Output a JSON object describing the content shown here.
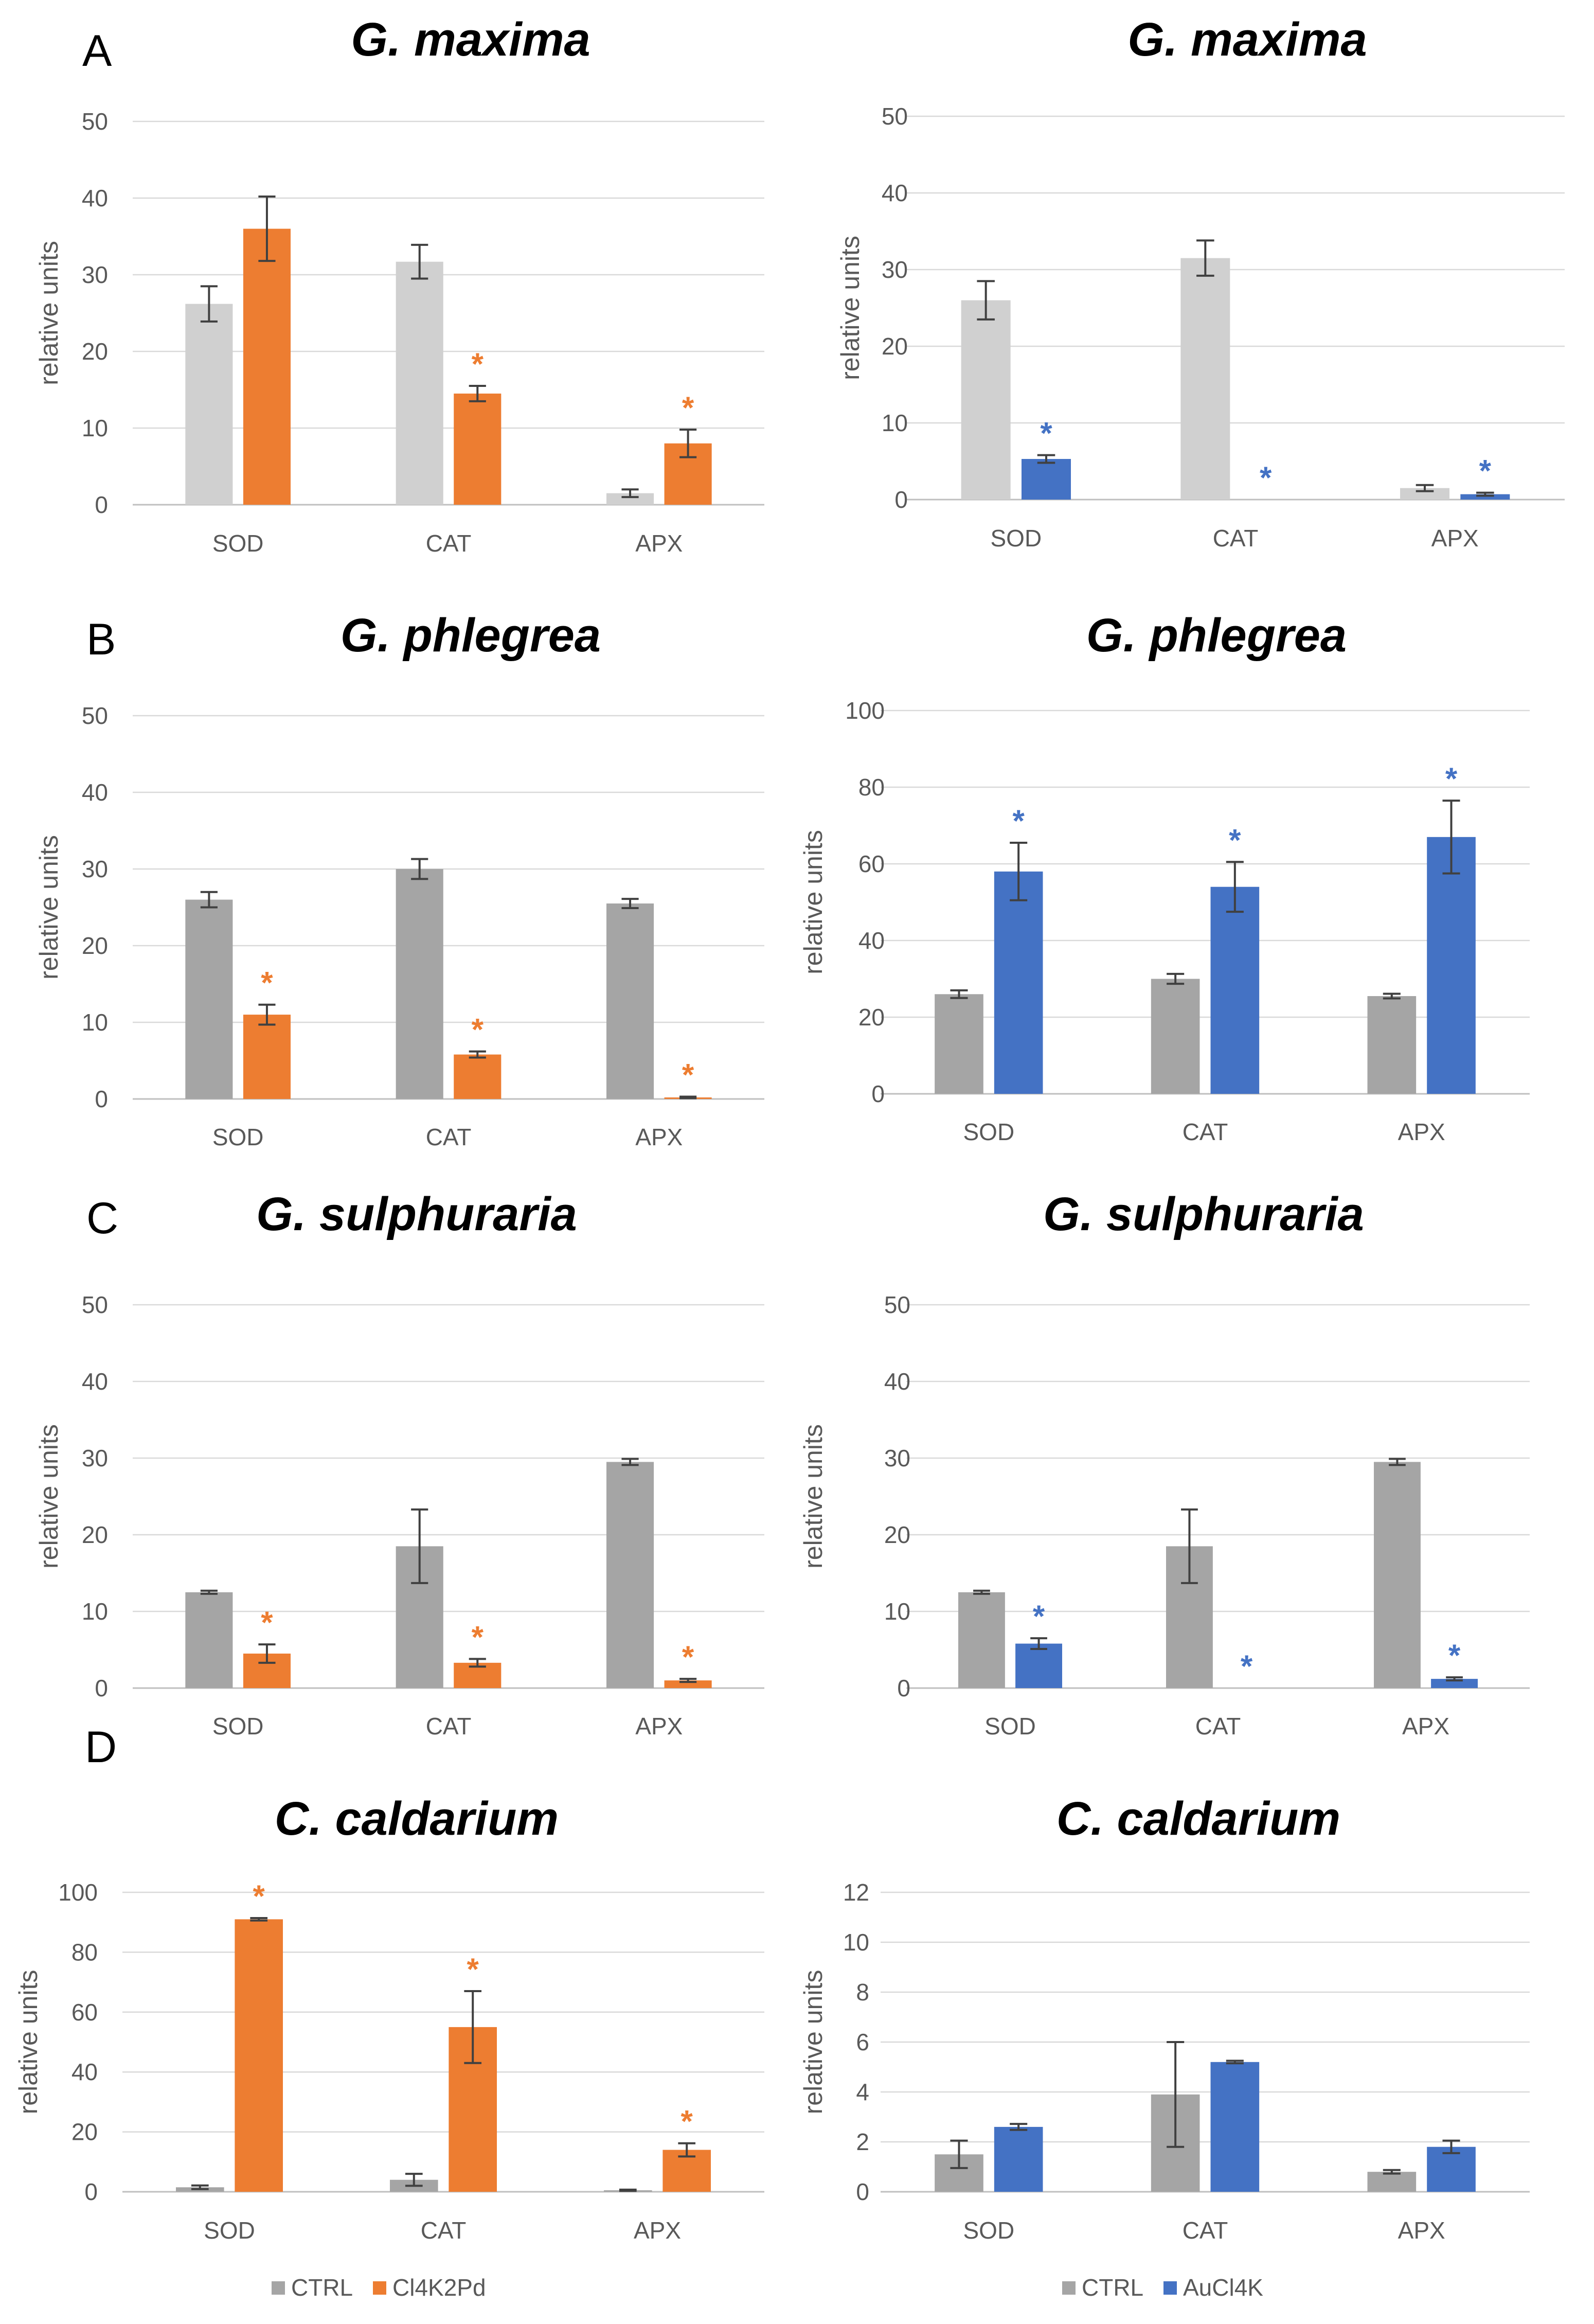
{
  "colors": {
    "ctrl_light": "#d0d0d0",
    "ctrl_dark": "#a5a5a5",
    "pd": "#ed7d31",
    "au": "#4472c4",
    "grid": "#d9d9d9",
    "axis": "#bfbfbf",
    "error": "#404040"
  },
  "rows": [
    {
      "letter": "A"
    },
    {
      "letter": "B"
    },
    {
      "letter": "C"
    },
    {
      "letter": "D"
    }
  ],
  "legends": {
    "left": {
      "ctrl": "CTRL",
      "treat": "Cl4K2Pd"
    },
    "right": {
      "ctrl": "CTRL",
      "treat": "AuCl4K"
    }
  },
  "chart_data": [
    {
      "id": "A-left",
      "type": "bar",
      "title": "G. maxima",
      "ylabel": "relative units",
      "ylim": [
        0,
        50
      ],
      "yticks": [
        0,
        10,
        20,
        30,
        40,
        50
      ],
      "categories": [
        "SOD",
        "CAT",
        "APX"
      ],
      "series": [
        {
          "name": "CTRL",
          "color": "#d0d0d0",
          "values": [
            26.2,
            31.7,
            1.5
          ],
          "errors": [
            2.3,
            2.2,
            0.5
          ]
        },
        {
          "name": "Cl4K2Pd",
          "color": "#ed7d31",
          "values": [
            36.0,
            14.5,
            8.0
          ],
          "errors": [
            4.2,
            1.0,
            1.8
          ],
          "significant": [
            false,
            true,
            true
          ]
        }
      ]
    },
    {
      "id": "A-right",
      "type": "bar",
      "title": "G. maxima",
      "ylabel": "relative units",
      "ylim": [
        0,
        50
      ],
      "yticks": [
        0,
        10,
        20,
        30,
        40,
        50
      ],
      "categories": [
        "SOD",
        "CAT",
        "APX"
      ],
      "series": [
        {
          "name": "CTRL",
          "color": "#d0d0d0",
          "values": [
            26.0,
            31.5,
            1.5
          ],
          "errors": [
            2.5,
            2.3,
            0.4
          ]
        },
        {
          "name": "AuCl4K",
          "color": "#4472c4",
          "values": [
            5.3,
            0,
            0.7
          ],
          "errors": [
            0.5,
            0,
            0.2
          ],
          "significant": [
            true,
            true,
            true
          ]
        }
      ]
    },
    {
      "id": "B-left",
      "type": "bar",
      "title": "G. phlegrea",
      "ylabel": "relative units",
      "ylim": [
        0,
        50
      ],
      "yticks": [
        0,
        10,
        20,
        30,
        40,
        50
      ],
      "categories": [
        "SOD",
        "CAT",
        "APX"
      ],
      "series": [
        {
          "name": "CTRL",
          "color": "#a5a5a5",
          "values": [
            26.0,
            30.0,
            25.5
          ],
          "errors": [
            1.0,
            1.3,
            0.6
          ]
        },
        {
          "name": "Cl4K2Pd",
          "color": "#ed7d31",
          "values": [
            11.0,
            5.8,
            0.2
          ],
          "errors": [
            1.3,
            0.4,
            0.1
          ],
          "significant": [
            true,
            true,
            true
          ]
        }
      ]
    },
    {
      "id": "B-right",
      "type": "bar",
      "title": "G. phlegrea",
      "ylabel": "relative units",
      "ylim": [
        0,
        100
      ],
      "yticks": [
        0,
        20,
        40,
        60,
        80,
        100
      ],
      "categories": [
        "SOD",
        "CAT",
        "APX"
      ],
      "series": [
        {
          "name": "CTRL",
          "color": "#a5a5a5",
          "values": [
            26.0,
            30.0,
            25.5
          ],
          "errors": [
            1.0,
            1.3,
            0.6
          ]
        },
        {
          "name": "AuCl4K",
          "color": "#4472c4",
          "values": [
            58.0,
            54.0,
            67.0
          ],
          "errors": [
            7.5,
            6.5,
            9.5
          ],
          "significant": [
            true,
            true,
            true
          ]
        }
      ]
    },
    {
      "id": "C-left",
      "type": "bar",
      "title": "G. sulphuraria",
      "ylabel": "relative units",
      "ylim": [
        0,
        50
      ],
      "yticks": [
        0,
        10,
        20,
        30,
        40,
        50
      ],
      "categories": [
        "SOD",
        "CAT",
        "APX"
      ],
      "series": [
        {
          "name": "CTRL",
          "color": "#a5a5a5",
          "values": [
            12.5,
            18.5,
            29.5
          ],
          "errors": [
            0.2,
            4.8,
            0.4
          ]
        },
        {
          "name": "Cl4K2Pd",
          "color": "#ed7d31",
          "values": [
            4.5,
            3.3,
            1.0
          ],
          "errors": [
            1.2,
            0.5,
            0.2
          ],
          "significant": [
            true,
            true,
            true
          ]
        }
      ]
    },
    {
      "id": "C-right",
      "type": "bar",
      "title": "G. sulphuraria",
      "ylabel": "relative units",
      "ylim": [
        0,
        50
      ],
      "yticks": [
        0,
        10,
        20,
        30,
        40,
        50
      ],
      "categories": [
        "SOD",
        "CAT",
        "APX"
      ],
      "series": [
        {
          "name": "CTRL",
          "color": "#a5a5a5",
          "values": [
            12.5,
            18.5,
            29.5
          ],
          "errors": [
            0.2,
            4.8,
            0.4
          ]
        },
        {
          "name": "AuCl4K",
          "color": "#4472c4",
          "values": [
            5.8,
            0,
            1.2
          ],
          "errors": [
            0.7,
            0,
            0.2
          ],
          "significant": [
            true,
            true,
            true
          ]
        }
      ]
    },
    {
      "id": "D-left",
      "type": "bar",
      "title": "C. caldarium",
      "ylabel": "relative units",
      "ylim": [
        0,
        100
      ],
      "yticks": [
        0,
        20,
        40,
        60,
        80,
        100
      ],
      "categories": [
        "SOD",
        "CAT",
        "APX"
      ],
      "series": [
        {
          "name": "CTRL",
          "color": "#a5a5a5",
          "values": [
            1.5,
            4.0,
            0.5
          ],
          "errors": [
            0.6,
            2.0,
            0.2
          ]
        },
        {
          "name": "Cl4K2Pd",
          "color": "#ed7d31",
          "values": [
            91.0,
            55.0,
            14.0
          ],
          "errors": [
            0.4,
            12.0,
            2.2
          ],
          "significant": [
            true,
            true,
            true
          ]
        }
      ]
    },
    {
      "id": "D-right",
      "type": "bar",
      "title": "C. caldarium",
      "ylabel": "relative units",
      "ylim": [
        0,
        12
      ],
      "yticks": [
        0,
        2,
        4,
        6,
        8,
        10,
        12
      ],
      "categories": [
        "SOD",
        "CAT",
        "APX"
      ],
      "series": [
        {
          "name": "CTRL",
          "color": "#a5a5a5",
          "values": [
            1.5,
            3.9,
            0.8
          ],
          "errors": [
            0.55,
            2.1,
            0.07
          ]
        },
        {
          "name": "AuCl4K",
          "color": "#4472c4",
          "values": [
            2.6,
            5.2,
            1.8
          ],
          "errors": [
            0.12,
            0.05,
            0.25
          ],
          "significant": [
            false,
            false,
            false
          ]
        }
      ]
    }
  ]
}
